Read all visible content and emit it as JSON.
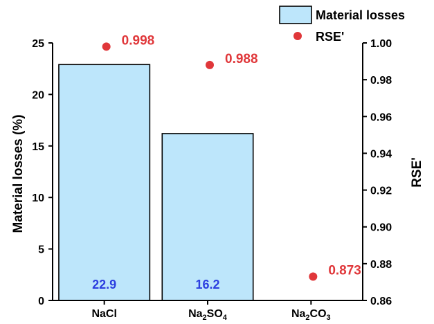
{
  "chart_data": {
    "type": "bar",
    "categories": [
      {
        "main": "NaCl",
        "parts": [
          {
            "t": "NaCl",
            "sub": false
          }
        ]
      },
      {
        "main": "Na2SO4",
        "parts": [
          {
            "t": "Na",
            "sub": false
          },
          {
            "t": "2",
            "sub": true
          },
          {
            "t": "SO",
            "sub": false
          },
          {
            "t": "4",
            "sub": true
          }
        ]
      },
      {
        "main": "Na2CO3",
        "parts": [
          {
            "t": "Na",
            "sub": false
          },
          {
            "t": "2",
            "sub": true
          },
          {
            "t": "CO",
            "sub": false
          },
          {
            "t": "3",
            "sub": true
          }
        ]
      }
    ],
    "series": [
      {
        "name": "Material losses",
        "type": "bar",
        "axis": "left",
        "values": [
          22.9,
          16.2,
          null
        ],
        "labels": [
          "22.9",
          "16.2",
          ""
        ],
        "color": "#bde6fb"
      },
      {
        "name": "RSE'",
        "type": "scatter",
        "axis": "right",
        "values": [
          0.998,
          0.988,
          0.873
        ],
        "labels": [
          "0.998",
          "0.988",
          "0.873"
        ],
        "color": "#e0373a"
      }
    ],
    "ylabel": "Material losses (%)",
    "y2label": "RSE'",
    "ylim": [
      0,
      25
    ],
    "y2lim": [
      0.86,
      1.0
    ],
    "yticks": [
      0,
      5,
      10,
      15,
      20,
      25
    ],
    "y2ticks": [
      0.86,
      0.88,
      0.9,
      0.92,
      0.94,
      0.96,
      0.98,
      1.0
    ],
    "y2tick_labels": [
      "0.86",
      "0.88",
      "0.90",
      "0.92",
      "0.94",
      "0.96",
      "0.98",
      "1.00"
    ],
    "grid": false,
    "legend": {
      "placement": "top-right",
      "entries": [
        "Material losses",
        "RSE'"
      ]
    }
  }
}
